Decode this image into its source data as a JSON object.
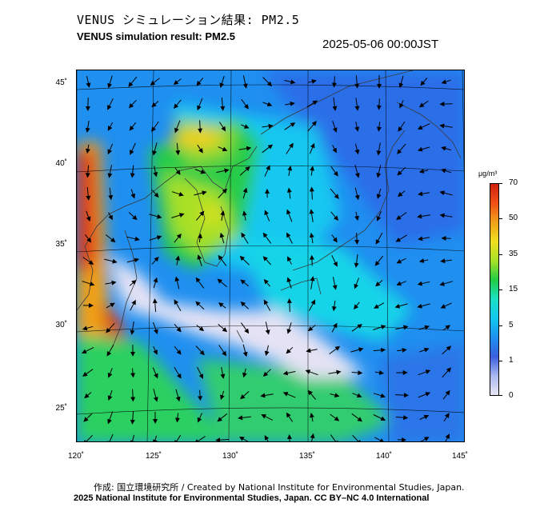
{
  "header": {
    "title_jp": "VENUS シミュレーション結果: PM2.5",
    "title_en": "VENUS simulation result: PM2.5",
    "timestamp": "2025-05-06 00:00JST"
  },
  "map": {
    "lat_labels": [
      "45˚",
      "40˚",
      "35˚",
      "30˚",
      "25˚"
    ],
    "lon_labels": [
      "120˚",
      "125˚",
      "130˚",
      "135˚",
      "140˚",
      "145˚"
    ],
    "land_color": "#8a8a8a",
    "arrow_color": "#000000"
  },
  "colorbar": {
    "unit": "μg/m³",
    "ticks": [
      "70",
      "50",
      "35",
      "15",
      "5",
      "1",
      "0"
    ],
    "colors": [
      "#e8e6f4",
      "#a9b8ee",
      "#3a5fe0",
      "#1e90f0",
      "#12c8f0",
      "#1ae0c4",
      "#22cc44",
      "#a8e028",
      "#f0e020",
      "#f0a018",
      "#f05016",
      "#d02010"
    ]
  },
  "footer": {
    "credit": "作成: 国立環境研究所 / Created by National Institute for Environmental Studies, Japan.",
    "license": "2025 National Institute for Environmental Studies, Japan. CC BY–NC 4.0 International"
  }
}
